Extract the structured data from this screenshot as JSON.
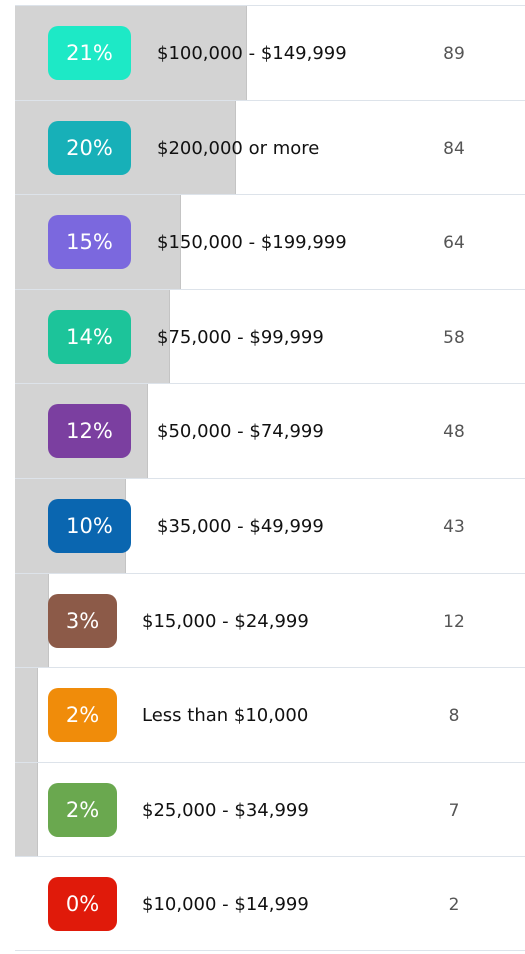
{
  "rows": [
    {
      "share": 21,
      "share_label": "21%",
      "label": "$100,000 - $149,999",
      "count": 89,
      "color": "#1de9c6"
    },
    {
      "share": 20,
      "share_label": "20%",
      "label": "$200,000 or more",
      "count": 84,
      "color": "#17b0b8"
    },
    {
      "share": 15,
      "share_label": "15%",
      "label": "$150,000 - $199,999",
      "count": 64,
      "color": "#7b68de"
    },
    {
      "share": 14,
      "share_label": "14%",
      "label": "$75,000 - $99,999",
      "count": 58,
      "color": "#1cc49a"
    },
    {
      "share": 12,
      "share_label": "12%",
      "label": "$50,000 - $74,999",
      "count": 48,
      "color": "#7b3fa0"
    },
    {
      "share": 10,
      "share_label": "10%",
      "label": "$35,000 - $49,999",
      "count": 43,
      "color": "#0a66b0"
    },
    {
      "share": 3,
      "share_label": "3%",
      "label": "$15,000 - $24,999",
      "count": 12,
      "color": "#8c5a48"
    },
    {
      "share": 2,
      "share_label": "2%",
      "label": "Less than $10,000",
      "count": 8,
      "color": "#f08c0a"
    },
    {
      "share": 2,
      "share_label": "2%",
      "label": "$25,000 - $34,999",
      "count": 7,
      "color": "#6aa84f"
    },
    {
      "share": 0,
      "share_label": "0%",
      "label": "$10,000 - $14,999",
      "count": 2,
      "color": "#e01a0a"
    }
  ]
}
